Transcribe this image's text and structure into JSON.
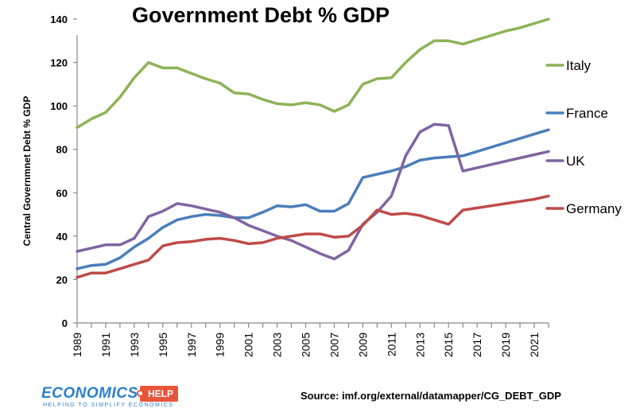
{
  "chart_data": {
    "type": "line",
    "title": "Government Debt % GDP",
    "xlabel": "",
    "ylabel": "Central Governmnet Debt % GDP",
    "ylim": [
      0,
      140
    ],
    "yticks": [
      0,
      20,
      40,
      60,
      80,
      100,
      120,
      140
    ],
    "xlim": [
      1989,
      2022
    ],
    "xticks": [
      "1989",
      "1991",
      "1993",
      "1995",
      "1997",
      "1999",
      "2001",
      "2003",
      "2005",
      "2007",
      "2009",
      "2011",
      "2013",
      "2015",
      "2017",
      "2019",
      "2021"
    ],
    "x": [
      1989,
      1990,
      1991,
      1992,
      1993,
      1994,
      1995,
      1996,
      1997,
      1998,
      1999,
      2000,
      2001,
      2002,
      2003,
      2004,
      2005,
      2006,
      2007,
      2008,
      2009,
      2010,
      2011,
      2012,
      2013,
      2014,
      2015,
      2016,
      2017,
      2018,
      2019,
      2020,
      2021,
      2022
    ],
    "series": [
      {
        "name": "Italy",
        "color": "#8db357",
        "values": [
          90,
          94,
          97,
          104,
          113,
          120,
          117.5,
          117.5,
          115,
          112.5,
          110.5,
          106,
          105.5,
          103,
          101,
          100.5,
          101.5,
          100.5,
          97.5,
          100.5,
          110,
          112.5,
          113,
          120,
          126,
          130,
          130,
          128.5,
          130.5,
          132.5,
          134.5,
          136,
          138,
          140
        ]
      },
      {
        "name": "France",
        "color": "#4a7ebb",
        "values": [
          25,
          26.5,
          27,
          30,
          35,
          39,
          44,
          47.5,
          49,
          50,
          49.5,
          48.5,
          48.5,
          51,
          54,
          53.5,
          54.5,
          51.5,
          51.5,
          55,
          67,
          68.5,
          70,
          72,
          75,
          76,
          76.5,
          77,
          79,
          81,
          83,
          85,
          87,
          89
        ]
      },
      {
        "name": "UK",
        "color": "#8064a2",
        "values": [
          33,
          34.5,
          36,
          36,
          39,
          49,
          51.5,
          55,
          54,
          52.5,
          51,
          48.5,
          45,
          42.5,
          40,
          38,
          35,
          32,
          29.5,
          33.5,
          45.5,
          51,
          58.5,
          77,
          88,
          91.5,
          91,
          70,
          71.5,
          73,
          74.5,
          76,
          77.5,
          79
        ]
      },
      {
        "name": "Germany",
        "color": "#be4b48",
        "values": [
          21,
          23,
          23,
          25,
          27,
          29,
          35.5,
          37,
          37.5,
          38.5,
          39,
          38,
          36.5,
          37,
          39,
          40,
          41,
          41,
          39.5,
          40,
          45,
          52,
          50,
          50.5,
          49.5,
          47.5,
          45.5,
          52,
          53,
          54,
          55,
          56,
          57,
          58.5
        ]
      }
    ]
  },
  "source": "Source: imf.org/external/datamapper/CG_DEBT_GDP",
  "logo": {
    "main": "ECONOMICS",
    "badge": "HELP",
    "tagline": "HELPING TO SIMPLIFY ECONOMICS"
  }
}
